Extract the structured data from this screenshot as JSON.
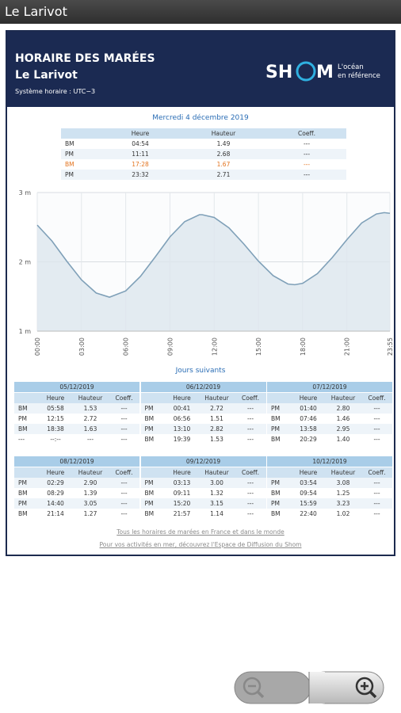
{
  "app_bar": {
    "title": "Le Larivot"
  },
  "header": {
    "title": "HORAIRE DES MARÉES",
    "location": "Le Larivot",
    "timezone": "Système horaire : UTC−3",
    "logo_left": "SH",
    "logo_right": "M",
    "tagline": [
      "L'océan",
      "en référence"
    ]
  },
  "today": {
    "date": "Mercredi 4 décembre 2019",
    "highlight_row": 2,
    "columns": [
      "Heure",
      "Hauteur",
      "Coeff."
    ],
    "rows": [
      [
        "BM",
        "04:54",
        "1.49",
        "---"
      ],
      [
        "PM",
        "11:11",
        "2.68",
        "---"
      ],
      [
        "BM",
        "17:28",
        "1.67",
        "---"
      ],
      [
        "PM",
        "23:32",
        "2.71",
        "---"
      ]
    ]
  },
  "chart_data": {
    "type": "line",
    "x": [
      0,
      1,
      2,
      3,
      4,
      4.9,
      6,
      7,
      8,
      9,
      10,
      11,
      11.183,
      12,
      13,
      14,
      15,
      16,
      17,
      17.467,
      18,
      19,
      20,
      21,
      22,
      23,
      23.533,
      23.917
    ],
    "series": [
      {
        "color": "#7fa0b8",
        "values": [
          2.53,
          2.3,
          2.01,
          1.74,
          1.55,
          1.49,
          1.58,
          1.79,
          2.07,
          2.36,
          2.58,
          2.68,
          2.68,
          2.64,
          2.49,
          2.26,
          2.01,
          1.8,
          1.68,
          1.67,
          1.69,
          1.83,
          2.06,
          2.32,
          2.56,
          2.69,
          2.71,
          2.7
        ]
      }
    ],
    "xlim": [
      0,
      23.917
    ],
    "ylim": [
      1,
      3
    ],
    "xticks": [
      {
        "value": 0,
        "label": "00:00"
      },
      {
        "value": 3,
        "label": "03:00"
      },
      {
        "value": 6,
        "label": "06:00"
      },
      {
        "value": 9,
        "label": "09:00"
      },
      {
        "value": 12,
        "label": "12:00"
      },
      {
        "value": 15,
        "label": "15:00"
      },
      {
        "value": 18,
        "label": "18:00"
      },
      {
        "value": 21,
        "label": "21:00"
      },
      {
        "value": 23.917,
        "label": "23:55"
      }
    ],
    "yticks": [
      {
        "value": 3,
        "label": "3 m"
      },
      {
        "value": 2,
        "label": "2 m"
      },
      {
        "value": 1,
        "label": "1 m"
      }
    ],
    "grid": true,
    "area_color": "#dde6ee"
  },
  "next_days": {
    "title": "Jours suivants",
    "columns": [
      "Heure",
      "Hauteur",
      "Coeff."
    ],
    "days": [
      {
        "date": "05/12/2019",
        "rows": [
          [
            "BM",
            "05:58",
            "1.53",
            "---"
          ],
          [
            "PM",
            "12:15",
            "2.72",
            "---"
          ],
          [
            "BM",
            "18:38",
            "1.63",
            "---"
          ],
          [
            "---",
            "--:--",
            "---",
            "---"
          ]
        ]
      },
      {
        "date": "06/12/2019",
        "rows": [
          [
            "PM",
            "00:41",
            "2.72",
            "---"
          ],
          [
            "BM",
            "06:56",
            "1.51",
            "---"
          ],
          [
            "PM",
            "13:10",
            "2.82",
            "---"
          ],
          [
            "BM",
            "19:39",
            "1.53",
            "---"
          ]
        ]
      },
      {
        "date": "07/12/2019",
        "rows": [
          [
            "PM",
            "01:40",
            "2.80",
            "---"
          ],
          [
            "BM",
            "07:46",
            "1.46",
            "---"
          ],
          [
            "PM",
            "13:58",
            "2.95",
            "---"
          ],
          [
            "BM",
            "20:29",
            "1.40",
            "---"
          ]
        ]
      },
      {
        "date": "08/12/2019",
        "rows": [
          [
            "PM",
            "02:29",
            "2.90",
            "---"
          ],
          [
            "BM",
            "08:29",
            "1.39",
            "---"
          ],
          [
            "PM",
            "14:40",
            "3.05",
            "---"
          ],
          [
            "BM",
            "21:14",
            "1.27",
            "---"
          ]
        ]
      },
      {
        "date": "09/12/2019",
        "rows": [
          [
            "PM",
            "03:13",
            "3.00",
            "---"
          ],
          [
            "BM",
            "09:11",
            "1.32",
            "---"
          ],
          [
            "PM",
            "15:20",
            "3.15",
            "---"
          ],
          [
            "BM",
            "21:57",
            "1.14",
            "---"
          ]
        ]
      },
      {
        "date": "10/12/2019",
        "rows": [
          [
            "PM",
            "03:54",
            "3.08",
            "---"
          ],
          [
            "BM",
            "09:54",
            "1.25",
            "---"
          ],
          [
            "PM",
            "15:59",
            "3.23",
            "---"
          ],
          [
            "BM",
            "22:40",
            "1.02",
            "---"
          ]
        ]
      }
    ]
  },
  "links": [
    "Tous les horaires de marées en France et dans le monde",
    "Pour vos activités en mer, découvrez l'Espace de Diffusion du Shom"
  ]
}
